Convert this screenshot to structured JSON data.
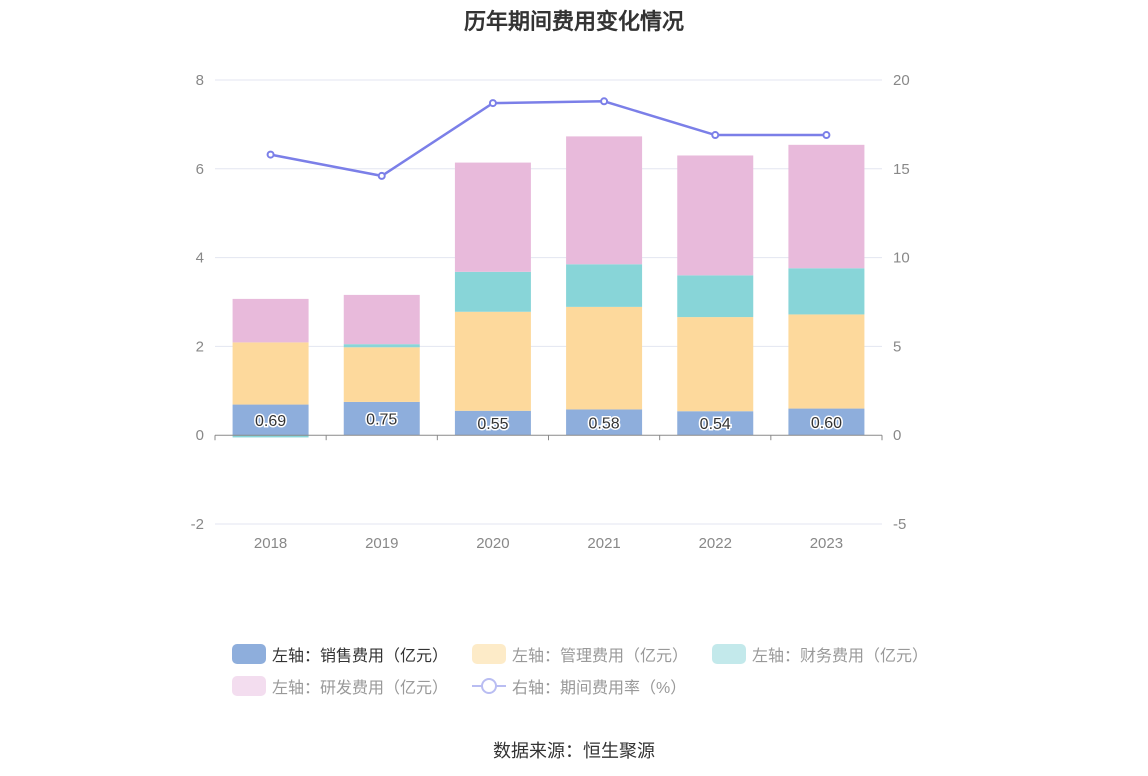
{
  "colors": {
    "sales": "#8eaedc",
    "admin": "#fdd99c",
    "finance": "#88d5d8",
    "rd": "#e8badb",
    "rate": "#7b7fe8",
    "grid": "#e3e6f0",
    "axis": "#8a8a8a"
  },
  "legend_colors": {
    "sales": "#8eaedc",
    "admin": "#fdebc8",
    "finance": "#c3e9eb",
    "rd": "#f3ddef",
    "rate": "#b9bdf2"
  },
  "source": "数据来源：恒生聚源",
  "chart_data": {
    "type": "bar",
    "stacked": true,
    "title": "历年期间费用变化情况",
    "categories": [
      "2018",
      "2019",
      "2020",
      "2021",
      "2022",
      "2023"
    ],
    "y_left": {
      "min": -2,
      "max": 8,
      "ticks": [
        "-2",
        "0",
        "2",
        "4",
        "6",
        "8"
      ]
    },
    "y_right": {
      "min": -5,
      "max": 20,
      "ticks": [
        "-5",
        "0",
        "5",
        "10",
        "15",
        "20"
      ]
    },
    "series": [
      {
        "key": "sales",
        "name": "左轴：销售费用（亿元）",
        "axis": "left",
        "values": [
          0.69,
          0.75,
          0.55,
          0.58,
          0.54,
          0.6
        ],
        "labels": [
          "0.69",
          "0.75",
          "0.55",
          "0.58",
          "0.54",
          "0.60"
        ]
      },
      {
        "key": "admin",
        "name": "左轴：管理费用（亿元）",
        "axis": "left",
        "values": [
          1.4,
          1.23,
          2.23,
          2.31,
          2.12,
          2.12
        ]
      },
      {
        "key": "finance",
        "name": "左轴：财务费用（亿元）",
        "axis": "left",
        "values": [
          -0.05,
          0.07,
          0.9,
          0.96,
          0.94,
          1.04
        ]
      },
      {
        "key": "rd",
        "name": "左轴：研发费用（亿元）",
        "axis": "left",
        "values": [
          0.98,
          1.11,
          2.46,
          2.88,
          2.7,
          2.78
        ]
      },
      {
        "key": "rate",
        "name": "右轴：期间费用率（%）",
        "axis": "right",
        "type": "line",
        "values": [
          15.8,
          14.6,
          18.7,
          18.8,
          16.9,
          16.9
        ]
      }
    ]
  }
}
